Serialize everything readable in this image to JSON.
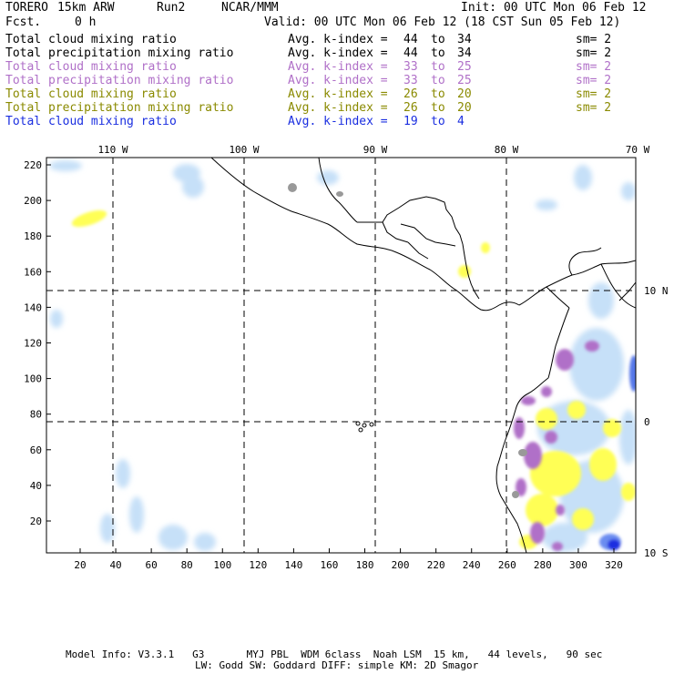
{
  "header": {
    "model": "TORERO",
    "resolution": "15km ARW",
    "run": "Run2",
    "org": "NCAR/MMM",
    "init": "Init: 00 UTC Mon 06 Feb 12",
    "fcst_label": "Fcst.",
    "fcst_value": "0 h",
    "valid": "Valid: 00 UTC Mon 06 Feb 12 (18 CST Sun 05 Feb 12)"
  },
  "legend": [
    {
      "name": "Total cloud mixing ratio",
      "avg": "Avg. k-index =",
      "from": "44",
      "to_word": "to",
      "to": "34",
      "sm": "sm= 2",
      "color": "#000000"
    },
    {
      "name": "Total precipitation mixing ratio",
      "avg": "Avg. k-index =",
      "from": "44",
      "to_word": "to",
      "to": "34",
      "sm": "sm= 2",
      "color": "#000000"
    },
    {
      "name": "Total cloud mixing ratio",
      "avg": "Avg. k-index =",
      "from": "33",
      "to_word": "to",
      "to": "25",
      "sm": "sm= 2",
      "color": "#b070c8"
    },
    {
      "name": "Total precipitation mixing ratio",
      "avg": "Avg. k-index =",
      "from": "33",
      "to_word": "to",
      "to": "25",
      "sm": "sm= 2",
      "color": "#b070c8"
    },
    {
      "name": "Total cloud mixing ratio",
      "avg": "Avg. k-index =",
      "from": "26",
      "to_word": "to",
      "to": "20",
      "sm": "sm= 2",
      "color": "#8a8a00"
    },
    {
      "name": "Total precipitation mixing ratio",
      "avg": "Avg. k-index =",
      "from": "26",
      "to_word": "to",
      "to": "20",
      "sm": "sm= 2",
      "color": "#8a8a00"
    },
    {
      "name": "Total cloud mixing ratio",
      "avg": "Avg. k-index =",
      "from": "19",
      "to_word": "to",
      "to": "4",
      "sm": "",
      "color": "#1a2ee0"
    }
  ],
  "axes": {
    "top_lon_labels": [
      "110 W",
      "100 W",
      "90 W",
      "80 W",
      "70 W"
    ],
    "right_lat_labels": [
      "10 N",
      "0",
      "10 S"
    ],
    "y_ticks": [
      "220",
      "200",
      "180",
      "160",
      "140",
      "120",
      "100",
      "80",
      "60",
      "40",
      "20"
    ],
    "x_ticks": [
      "20",
      "40",
      "60",
      "80",
      "100",
      "120",
      "140",
      "160",
      "180",
      "200",
      "220",
      "240",
      "260",
      "280",
      "300",
      "320"
    ]
  },
  "footer": {
    "line1": "Model Info: V3.3.1   G3       MYJ PBL  WDM 6class  Noah LSM  15 km,   44 levels,   90 sec",
    "line2": "LW: Godd SW: Goddard DIFF: simple KM: 2D Smagor"
  }
}
